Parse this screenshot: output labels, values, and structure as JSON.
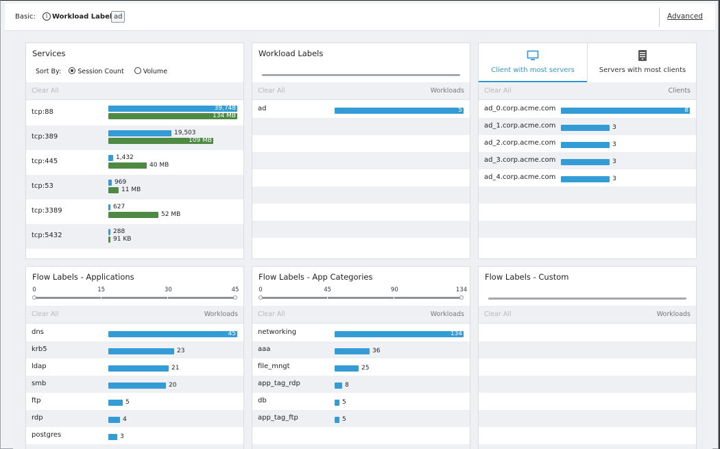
{
  "topbar": {
    "basic_label": "Basic:",
    "info_icon": "i",
    "workload_labels_label": "Workload Labels:",
    "chip": "ad",
    "advanced_link": "Advanced"
  },
  "common": {
    "clear_all": "Clear All"
  },
  "services": {
    "title": "Services",
    "sort_by": "Sort By:",
    "sort_options": [
      "Session Count",
      "Volume"
    ],
    "selected_sort": "Session Count",
    "max_count": 39748,
    "max_volume_mb": 134,
    "rows": [
      {
        "name": "tcp:88",
        "count": 39748,
        "count_label": "39,748",
        "volume_mb": 134,
        "volume_label": "134 MB"
      },
      {
        "name": "tcp:389",
        "count": 19503,
        "count_label": "19,503",
        "volume_mb": 109,
        "volume_label": "109 MB"
      },
      {
        "name": "tcp:445",
        "count": 1432,
        "count_label": "1,432",
        "volume_mb": 40,
        "volume_label": "40 MB"
      },
      {
        "name": "tcp:53",
        "count": 969,
        "count_label": "969",
        "volume_mb": 11,
        "volume_label": "11 MB"
      },
      {
        "name": "tcp:3389",
        "count": 627,
        "count_label": "627",
        "volume_mb": 52,
        "volume_label": "52 MB"
      },
      {
        "name": "tcp:5432",
        "count": 288,
        "count_label": "288",
        "volume_mb": 0.09,
        "volume_label": "91 KB"
      }
    ]
  },
  "workload_labels": {
    "title": "Workload Labels",
    "right_header": "Workloads",
    "max": 5,
    "rows": [
      {
        "name": "ad",
        "value": 5,
        "label": "5"
      }
    ]
  },
  "clients": {
    "tabs": [
      {
        "label": "Client with most servers",
        "icon": "monitor-icon",
        "active": true
      },
      {
        "label": "Servers with most clients",
        "icon": "server-icon",
        "active": false
      }
    ],
    "right_header": "Clients",
    "max": 8,
    "rows": [
      {
        "name": "ad_0.corp.acme.com",
        "value": 8,
        "label": "8"
      },
      {
        "name": "ad_1.corp.acme.com",
        "value": 3,
        "label": "3"
      },
      {
        "name": "ad_2.corp.acme.com",
        "value": 3,
        "label": "3"
      },
      {
        "name": "ad_3.corp.acme.com",
        "value": 3,
        "label": "3"
      },
      {
        "name": "ad_4.corp.acme.com",
        "value": 3,
        "label": "3"
      }
    ]
  },
  "flow_apps": {
    "title": "Flow Labels - Applications",
    "right_header": "Workloads",
    "scale": [
      "0",
      "15",
      "30",
      "45"
    ],
    "max": 45,
    "rows": [
      {
        "name": "dns",
        "value": 45,
        "label": "45"
      },
      {
        "name": "krb5",
        "value": 23,
        "label": "23"
      },
      {
        "name": "ldap",
        "value": 21,
        "label": "21"
      },
      {
        "name": "smb",
        "value": 20,
        "label": "20"
      },
      {
        "name": "ftp",
        "value": 5,
        "label": "5"
      },
      {
        "name": "rdp",
        "value": 4,
        "label": "4"
      },
      {
        "name": "postgres",
        "value": 3,
        "label": "3"
      }
    ]
  },
  "flow_cats": {
    "title": "Flow Labels - App Categories",
    "right_header": "Workloads",
    "scale": [
      "0",
      "45",
      "90",
      "134"
    ],
    "max": 134,
    "rows": [
      {
        "name": "networking",
        "value": 134,
        "label": "134"
      },
      {
        "name": "aaa",
        "value": 36,
        "label": "36"
      },
      {
        "name": "file_mngt",
        "value": 25,
        "label": "25"
      },
      {
        "name": "app_tag_rdp",
        "value": 8,
        "label": "8"
      },
      {
        "name": "db",
        "value": 5,
        "label": "5"
      },
      {
        "name": "app_tag_ftp",
        "value": 5,
        "label": "5"
      }
    ]
  },
  "flow_custom": {
    "title": "Flow Labels - Custom",
    "right_header": "Workloads"
  }
}
